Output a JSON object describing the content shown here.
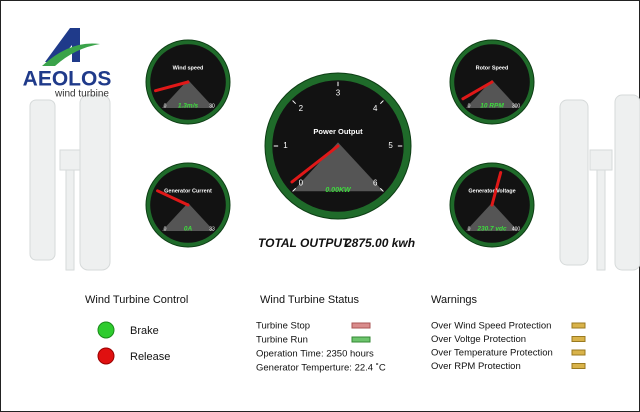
{
  "logo": {
    "brand": "AEOLOS",
    "tagline": "wind turbine"
  },
  "gauges": [
    {
      "title": "Wind  speed",
      "reading": "1.3m/s",
      "min": "0",
      "max": "30"
    },
    {
      "title": "Generator Current",
      "reading": "0A",
      "min": "0",
      "max": "33"
    },
    {
      "title": "Rotor  Speed",
      "reading": "10 RPM",
      "min": "0",
      "max": "300"
    },
    {
      "title": "Generator Voltage",
      "reading": "230.7 vdc",
      "min": "0",
      "max": "400"
    }
  ],
  "power_gauge": {
    "title": "Power  Output",
    "reading": "0.00KW",
    "ticks": [
      "0",
      "1",
      "2",
      "3",
      "4",
      "5",
      "6"
    ]
  },
  "total_output": {
    "label": "TOTAL OUTPUT",
    "value": "2875.00 kwh"
  },
  "control": {
    "title": "Wind  Turbine  Control",
    "buttons": [
      "Brake",
      "Release"
    ]
  },
  "status": {
    "title": "Wind  Turbine  Status",
    "items": [
      "Turbine  Stop",
      "Turbine  Run"
    ],
    "operation_time": "Operation Time:  2350  hours",
    "temperature": "Generator  Temperture:  22.4 ˚C"
  },
  "warnings": {
    "title": "Warnings",
    "items": [
      "Over Wind Speed Protection",
      "Over Voltge Protection",
      "Over Temperature Protection",
      "Over  RPM Protection"
    ]
  }
}
